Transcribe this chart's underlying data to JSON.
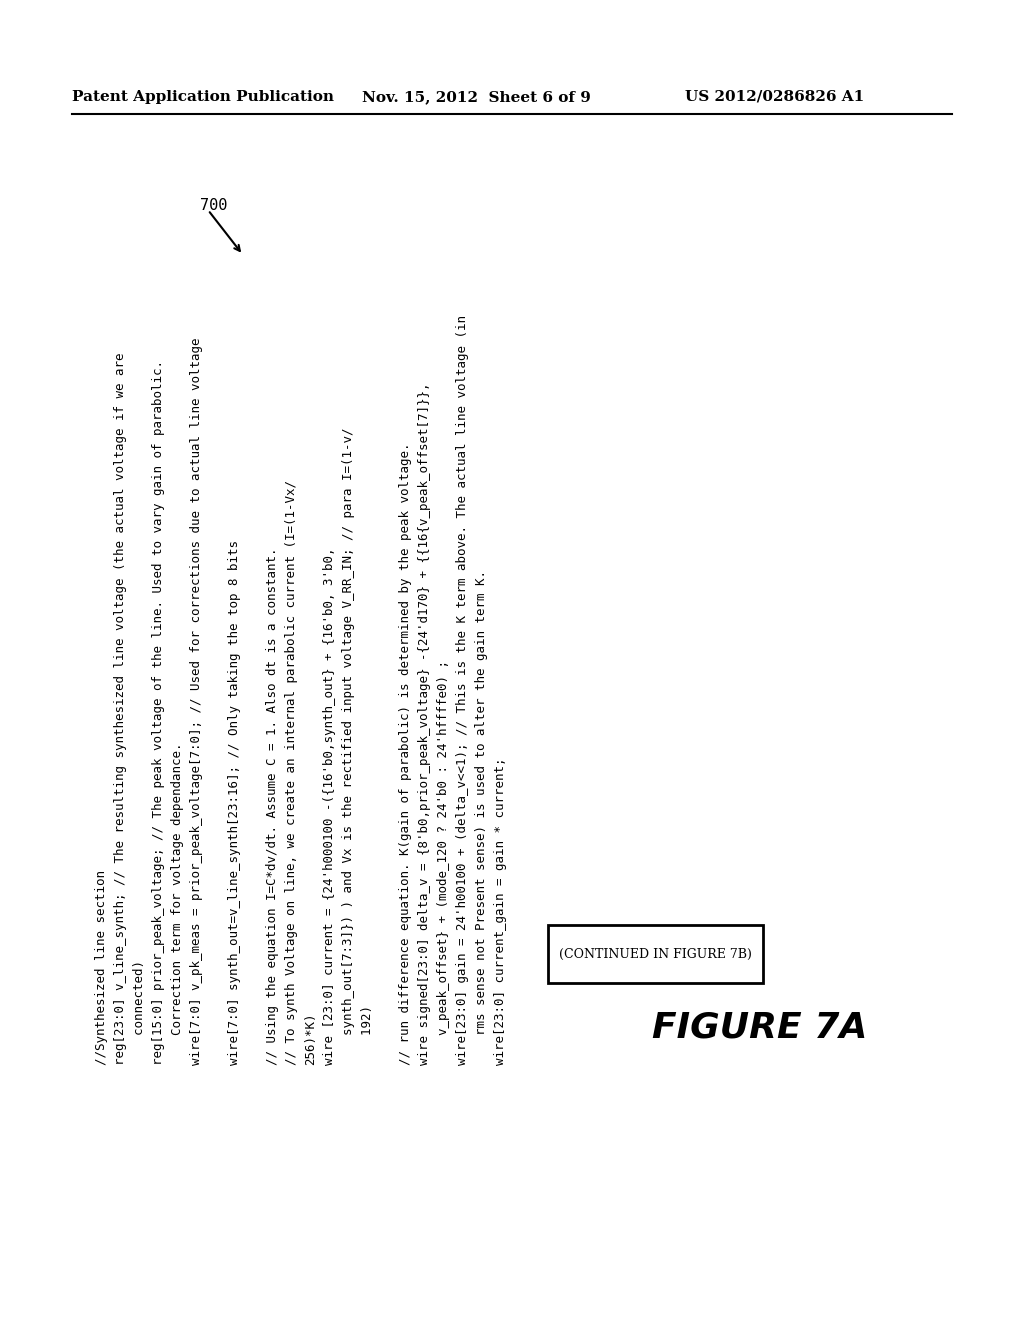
{
  "background_color": "#ffffff",
  "header_left": "Patent Application Publication",
  "header_center": "Nov. 15, 2012  Sheet 6 of 9",
  "header_right": "US 2012/0286826 A1",
  "figure_label": "700",
  "figure_name": "FIGURE 7A",
  "continued_text": "(CONTINUED IN FIGURE 7B)",
  "code_groups": [
    {
      "lines": [
        "//Synthesized line section",
        "reg[23:0] v_line_synth; // The resulting synthesized line voltage (the actual voltage if we are",
        "connected)",
        "reg[15:0] prior_peak_voltage; // The peak voltage of the line. Used to vary gain of parabolic.",
        "    Correction term for voltage dependance.",
        "wire[7:0] v_pk_meas = prior_peak_voltage[7:0]; // Used for corrections due to actual line voltage"
      ]
    },
    {
      "lines": [
        "wire[7:0] synth_out=v_line_synth[23:16]; // Only taking the top 8 bits"
      ]
    },
    {
      "lines": [
        "// Using the equation I=C*dv/dt. Assume C = 1. Also dt is a constant.",
        "// To synth Voltage on line, we create an internal parabolic current (I=(1-Vx/",
        "256)*K)",
        "wire [23:0] current = {24'h000100 -({16'b0,synth_out} + {16'b0, 3'b0,",
        "    synth_out[7:3]}) ) and Vx is the rectified input voltage V_RR_IN; // para I=(1-v/",
        "    192)"
      ]
    },
    {
      "lines": [
        "// run difference equation. K(gain of parabolic) is determined by the peak voltage.",
        "wire signed[23:0] delta_v = {8'b0,prior_peak_voltage} -{24'd170} + {{16{v_peak_offset[7]}},",
        "    v_peak_offset} + (mode_120 ? 24'b0 : 24'hffffe0) ;",
        "wire[23:0] gain = 24'h00100 + (delta_v<<1); // This is the K term above. The actual line voltage (in",
        "    rms sense not Present sense) is used to alter the gain term K.",
        "wire[23:0] current_gain = gain * current;"
      ]
    }
  ]
}
